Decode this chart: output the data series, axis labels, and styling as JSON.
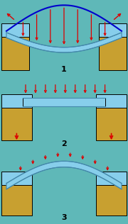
{
  "bg_color": "#5fb8b8",
  "abutment_color": "#c8a030",
  "deck_color": "#87ceeb",
  "deck_edge_color": "#4488aa",
  "cable_color": "#0000cc",
  "arrow_color": "#cc0000",
  "fig_width": 1.8,
  "fig_height": 3.16,
  "dpi": 100
}
